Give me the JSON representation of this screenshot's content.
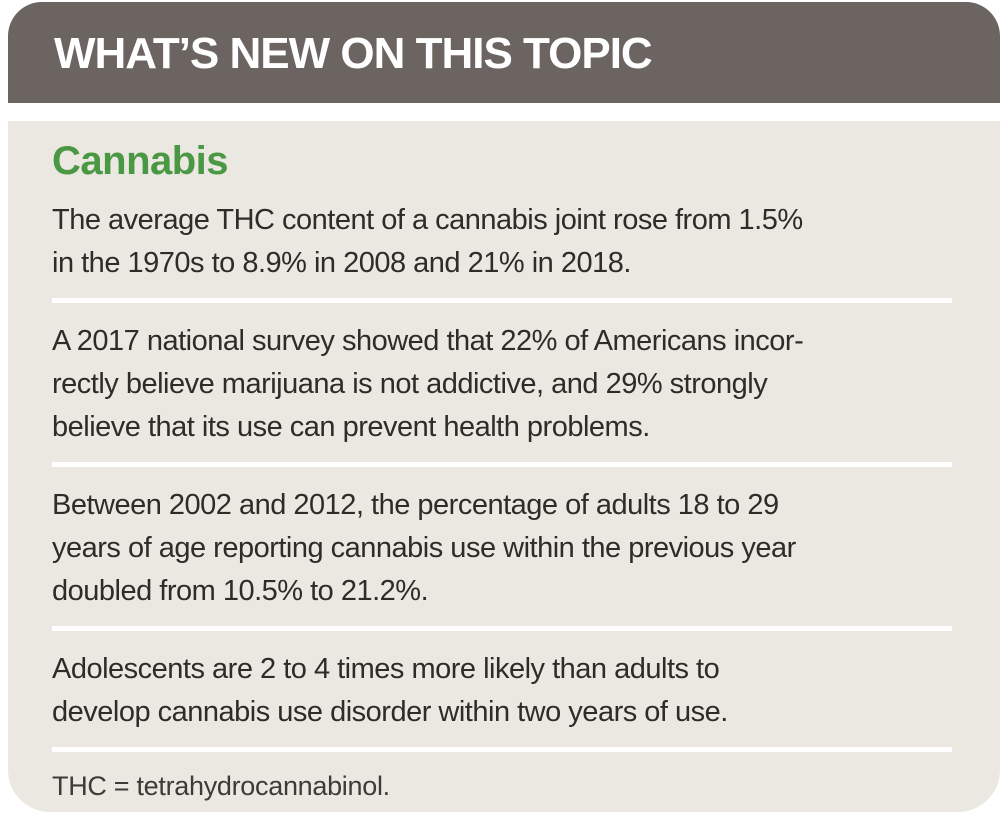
{
  "banner": {
    "title": "WHAT’S NEW ON THIS TOPIC",
    "bg_color": "#6b6460",
    "text_color": "#ffffff"
  },
  "panel": {
    "bg_color": "#ebe8e1",
    "divider_color": "#ffffff",
    "topic_title": "Cannabis",
    "topic_title_color": "#4a9744",
    "body_text_color": "#2e2c29",
    "facts": [
      {
        "text": "The average THC content of a cannabis joint rose from 1.5%\nin the 1970s to 8.9% in 2008 and 21% in 2018."
      },
      {
        "text": "A 2017 national survey showed that 22% of Americans incor-\nrectly believe marijuana is not addictive, and 29% strongly\nbelieve that its use can prevent health problems."
      },
      {
        "text": "Between 2002 and 2012, the percentage of adults 18 to 29\nyears of age reporting cannabis use within the previous year\ndoubled from 10.5% to 21.2%."
      },
      {
        "text": "Adolescents are 2 to 4 times more likely than adults to\ndevelop cannabis use disorder within two years of use."
      }
    ],
    "footnote": "THC = tetrahydrocannabinol."
  }
}
